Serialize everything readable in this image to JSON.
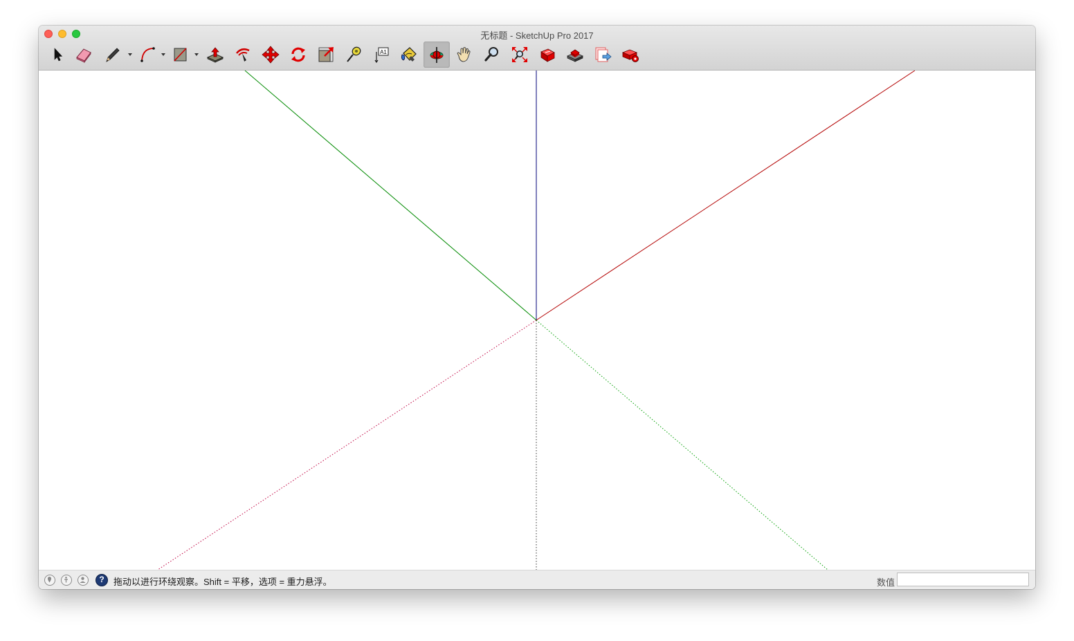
{
  "window": {
    "title": "无标题 - SketchUp Pro 2017"
  },
  "toolbar": {
    "tools": [
      {
        "id": "select",
        "icon": "select-arrow-icon"
      },
      {
        "id": "eraser",
        "icon": "eraser-icon"
      },
      {
        "id": "line",
        "icon": "pencil-icon",
        "dropdown": true
      },
      {
        "id": "arc",
        "icon": "arc-icon",
        "dropdown": true
      },
      {
        "id": "shapes",
        "icon": "rectangle-icon",
        "dropdown": true
      },
      {
        "id": "push-pull",
        "icon": "push-pull-icon"
      },
      {
        "id": "offset",
        "icon": "offset-icon"
      },
      {
        "id": "move",
        "icon": "move-icon"
      },
      {
        "id": "rotate",
        "icon": "rotate-icon"
      },
      {
        "id": "scale",
        "icon": "scale-icon"
      },
      {
        "id": "tape-measure",
        "icon": "tape-measure-icon"
      },
      {
        "id": "text",
        "icon": "text-label-icon",
        "label": "A1"
      },
      {
        "id": "paint-bucket",
        "icon": "paint-bucket-icon"
      },
      {
        "id": "orbit",
        "icon": "orbit-icon",
        "active": true
      },
      {
        "id": "pan",
        "icon": "pan-hand-icon"
      },
      {
        "id": "zoom",
        "icon": "zoom-magnifier-icon"
      },
      {
        "id": "zoom-extents",
        "icon": "zoom-extents-icon"
      },
      {
        "id": "warehouse",
        "icon": "3d-warehouse-icon"
      },
      {
        "id": "extension-warehouse",
        "icon": "extension-warehouse-icon"
      },
      {
        "id": "send-to-layout",
        "icon": "send-to-layout-icon"
      },
      {
        "id": "extension-manager",
        "icon": "extension-manager-icon"
      }
    ]
  },
  "axes": {
    "colors": {
      "red": "#b30000",
      "green": "#008a00",
      "blue": "#00007a",
      "neg_red": "#c00040",
      "neg_green": "#00a000",
      "neg_blue": "#333333"
    }
  },
  "statusbar": {
    "icons": [
      "geo-location-icon",
      "credits-icon",
      "user-account-icon"
    ],
    "help_icon": "help-icon",
    "message": "拖动以进行环绕观察。Shift = 平移，选项 = 重力悬浮。",
    "measurements_label": "数值",
    "measurements_value": ""
  }
}
